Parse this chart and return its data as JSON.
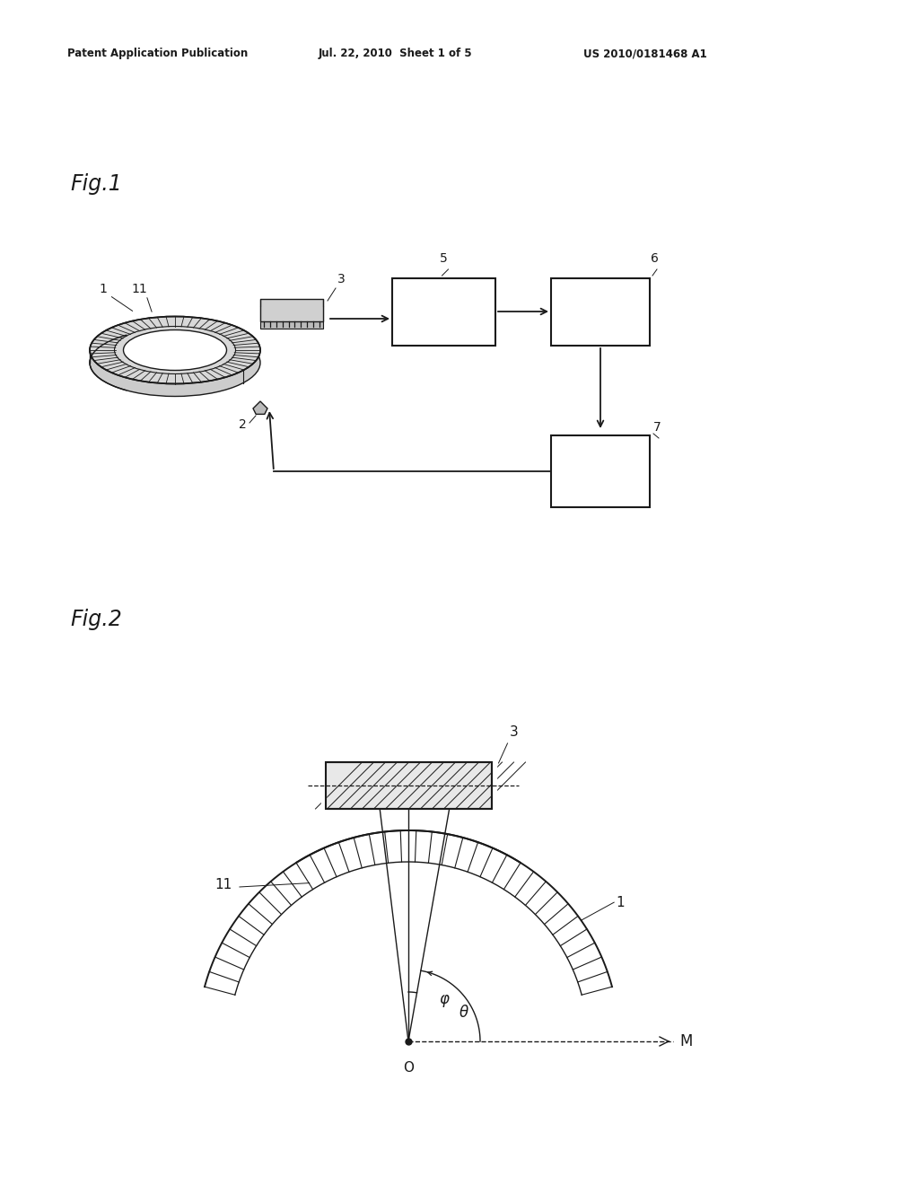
{
  "bg_color": "#ffffff",
  "line_color": "#1a1a1a",
  "header_left": "Patent Application Publication",
  "header_mid": "Jul. 22, 2010  Sheet 1 of 5",
  "header_right": "US 2010/0181468 A1",
  "fig1_label": "Fig.1",
  "fig2_label": "Fig.2",
  "fig_width": 10.24,
  "fig_height": 13.2
}
